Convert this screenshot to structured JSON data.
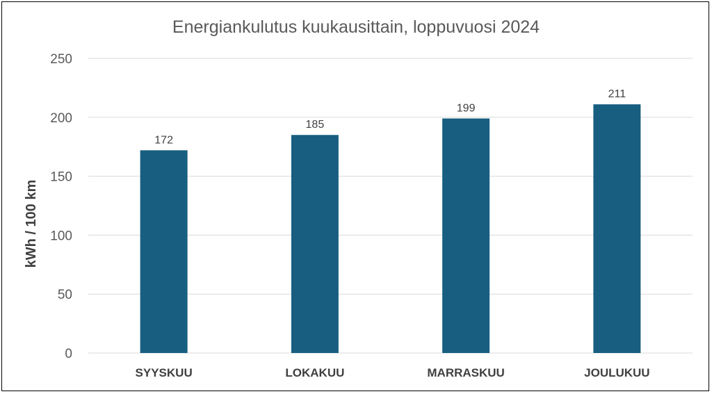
{
  "chart_data": {
    "type": "bar",
    "title": "Energiankulutus kuukausittain, loppuvuosi 2024",
    "xlabel": "",
    "ylabel": "kWh / 100 km",
    "categories": [
      "SYYSKUU",
      "LOKAKUU",
      "MARRASKUU",
      "JOULUKUU"
    ],
    "values": [
      172,
      185,
      199,
      211
    ],
    "data_labels": [
      "172",
      "185",
      "199",
      "211"
    ],
    "ylim": [
      0,
      250
    ],
    "yticks": [
      0,
      50,
      100,
      150,
      200,
      250
    ],
    "grid": true,
    "legend": "none",
    "colors": {
      "bar": "#175E80",
      "grid": "#D9D9D9",
      "axis": "#D9D9D9"
    }
  }
}
